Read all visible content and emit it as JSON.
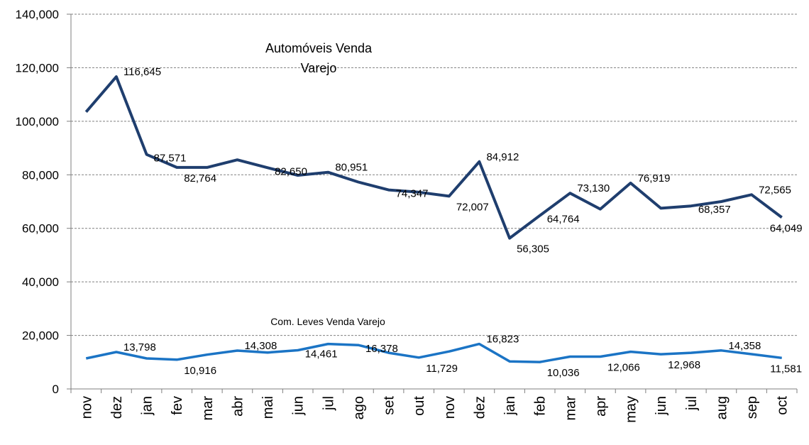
{
  "chart_data": {
    "type": "line",
    "categories": [
      "nov",
      "dez",
      "jan",
      "fev",
      "mar",
      "abr",
      "mai",
      "jun",
      "jul",
      "ago",
      "set",
      "out",
      "nov",
      "dez",
      "jan",
      "feb",
      "mar",
      "apr",
      "may",
      "jun",
      "jul",
      "aug",
      "sep",
      "oct"
    ],
    "ylim": [
      0,
      140000
    ],
    "y_ticks": [
      0,
      20000,
      40000,
      60000,
      80000,
      100000,
      120000,
      140000
    ],
    "y_tick_labels": [
      "0",
      "20,000",
      "40,000",
      "60,000",
      "80,000",
      "100,000",
      "120,000",
      "140,000"
    ],
    "grid": true,
    "series": [
      {
        "name": "Automóveis Venda Varejo",
        "name_lines": [
          "Automóveis Venda",
          "Varejo"
        ],
        "color": "#1f3e6e",
        "values": [
          103500,
          116645,
          87571,
          82764,
          82764,
          85600,
          82650,
          79800,
          80951,
          77300,
          74347,
          73500,
          72007,
          84912,
          56305,
          64764,
          73130,
          67200,
          76919,
          67500,
          68357,
          70000,
          72565,
          64049
        ]
      },
      {
        "name": "Com. Leves Venda Varejo",
        "color": "#1b74c5",
        "values": [
          11400,
          13798,
          11400,
          10916,
          12800,
          14308,
          13600,
          14461,
          16800,
          16378,
          13500,
          11729,
          14000,
          16823,
          10300,
          10036,
          12066,
          12066,
          13900,
          12968,
          13500,
          14358,
          13000,
          11581
        ]
      }
    ],
    "data_labels": [
      {
        "series": 0,
        "index": 1,
        "text": "116,645"
      },
      {
        "series": 0,
        "index": 2,
        "text": "87,571"
      },
      {
        "series": 0,
        "index": 3,
        "text": "82,764"
      },
      {
        "series": 0,
        "index": 6,
        "text": "82,650"
      },
      {
        "series": 0,
        "index": 8,
        "text": "80,951"
      },
      {
        "series": 0,
        "index": 10,
        "text": "74,347"
      },
      {
        "series": 0,
        "index": 12,
        "text": "72,007"
      },
      {
        "series": 0,
        "index": 13,
        "text": "84,912"
      },
      {
        "series": 0,
        "index": 14,
        "text": "56,305"
      },
      {
        "series": 0,
        "index": 15,
        "text": "64,764"
      },
      {
        "series": 0,
        "index": 16,
        "text": "73,130"
      },
      {
        "series": 0,
        "index": 18,
        "text": "76,919"
      },
      {
        "series": 0,
        "index": 20,
        "text": "68,357"
      },
      {
        "series": 0,
        "index": 22,
        "text": "72,565"
      },
      {
        "series": 0,
        "index": 23,
        "text": "64,049"
      },
      {
        "series": 1,
        "index": 1,
        "text": "13,798"
      },
      {
        "series": 1,
        "index": 3,
        "text": "10,916"
      },
      {
        "series": 1,
        "index": 5,
        "text": "14,308"
      },
      {
        "series": 1,
        "index": 7,
        "text": "14,461"
      },
      {
        "series": 1,
        "index": 9,
        "text": "16,378"
      },
      {
        "series": 1,
        "index": 11,
        "text": "11,729"
      },
      {
        "series": 1,
        "index": 13,
        "text": "16,823"
      },
      {
        "series": 1,
        "index": 15,
        "text": "10,036"
      },
      {
        "series": 1,
        "index": 17,
        "text": "12,066"
      },
      {
        "series": 1,
        "index": 19,
        "text": "12,968"
      },
      {
        "series": 1,
        "index": 21,
        "text": "14,358"
      },
      {
        "series": 1,
        "index": 23,
        "text": "11,581"
      }
    ]
  }
}
